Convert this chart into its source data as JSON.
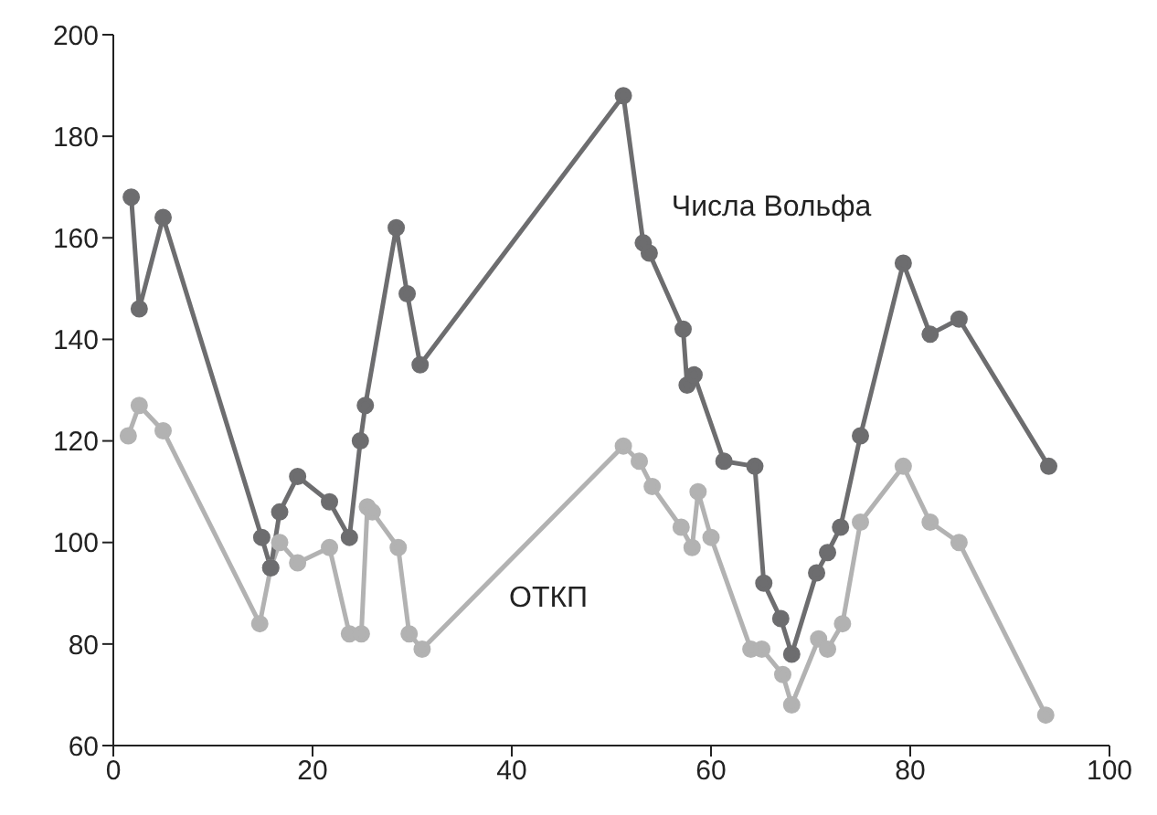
{
  "chart_data": {
    "type": "line",
    "xlim": [
      0,
      100
    ],
    "xticks": [
      0,
      20,
      40,
      60,
      80,
      100
    ],
    "ylim": [
      60,
      200
    ],
    "yticks": [
      60,
      80,
      100,
      120,
      140,
      160,
      180,
      200
    ],
    "marker": "circle",
    "line_style": "solid",
    "series": [
      {
        "name": "Числа Вольфа",
        "color": "#6d6d6f",
        "x": [
          1.8,
          2.6,
          5,
          14.9,
          15.8,
          16.7,
          18.5,
          21.7,
          23.7,
          24.8,
          25.3,
          28.4,
          29.5,
          30.8,
          51.2,
          53.2,
          53.8,
          57.2,
          57.6,
          58.3,
          61.3,
          64.4,
          65.3,
          67,
          68.1,
          70.6,
          71.7,
          73,
          75,
          79.3,
          82,
          84.9,
          93.9
        ],
        "values": [
          168,
          146,
          164,
          101,
          95,
          106,
          113,
          108,
          101,
          120,
          127,
          162,
          149,
          135,
          188,
          159,
          157,
          142,
          131,
          133,
          116,
          115,
          92,
          85,
          78,
          94,
          98,
          103,
          121,
          155,
          141,
          144,
          115
        ]
      },
      {
        "name": "ОТКП",
        "color": "#b2b2b2",
        "x": [
          1.5,
          2.6,
          5,
          14.7,
          15.8,
          16.7,
          18.5,
          21.7,
          23.7,
          24.9,
          25.5,
          26,
          28.6,
          29.7,
          31,
          51.2,
          52.8,
          54.1,
          57,
          58.1,
          58.7,
          60,
          64,
          65.1,
          67.2,
          68.1,
          70.8,
          71.7,
          73.2,
          75,
          79.3,
          82,
          84.9,
          93.6
        ],
        "values": [
          121,
          127,
          122,
          84,
          95,
          100,
          96,
          99,
          82,
          82,
          107,
          106,
          99,
          82,
          79,
          119,
          116,
          111,
          103,
          99,
          110,
          101,
          79,
          79,
          74,
          68,
          81,
          79,
          84,
          104,
          115,
          104,
          100,
          66
        ]
      }
    ]
  }
}
